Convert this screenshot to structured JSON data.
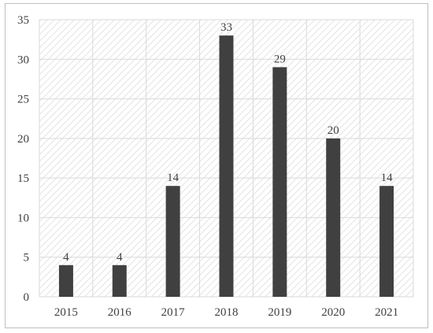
{
  "chart_data": {
    "type": "bar",
    "title": "",
    "xlabel": "",
    "ylabel": "",
    "categories": [
      "2015",
      "2016",
      "2017",
      "2018",
      "2019",
      "2020",
      "2021"
    ],
    "values": [
      4,
      4,
      14,
      33,
      29,
      20,
      14
    ],
    "ylim": [
      0,
      35
    ],
    "yticks": [
      0,
      5,
      10,
      15,
      20,
      25,
      30,
      35
    ],
    "data_labels": [
      "4",
      "4",
      "14",
      "33",
      "29",
      "20",
      "14"
    ],
    "grid": true,
    "legend": "none",
    "colors": {
      "bar": "#404040",
      "grid": "#d9d9d9",
      "hatch": "#e3e3e3",
      "text": "#404040"
    }
  }
}
